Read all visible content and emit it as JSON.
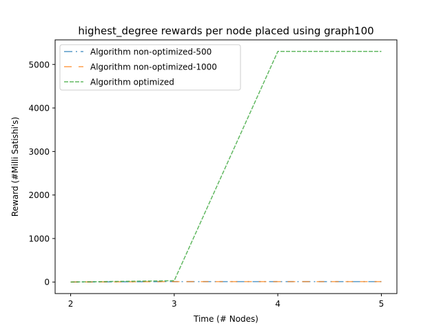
{
  "chart_data": {
    "type": "line",
    "title": "highest_degree rewards per node placed using graph100",
    "xlabel": "Time (# Nodes)",
    "ylabel": "Reward (#Milli Satishi's)",
    "x": [
      2,
      3,
      4,
      5
    ],
    "xlim": [
      1.85,
      5.15
    ],
    "ylim": [
      -265,
      5565
    ],
    "xticks": [
      2,
      3,
      4,
      5
    ],
    "yticks": [
      0,
      1000,
      2000,
      3000,
      4000,
      5000
    ],
    "grid": false,
    "legend_position": "top-left",
    "series": [
      {
        "name": "Algorithm non-optimized-500",
        "values": [
          0,
          10,
          10,
          10
        ],
        "color": "#1f77b4",
        "dash": "long-dash-dot"
      },
      {
        "name": "Algorithm non-optimized-1000",
        "values": [
          0,
          10,
          10,
          10
        ],
        "color": "#ff7f0e",
        "dash": "long-dash"
      },
      {
        "name": "Algorithm optimized",
        "values": [
          0,
          30,
          5300,
          5300
        ],
        "color": "#2ca02c",
        "dash": "dash"
      }
    ]
  }
}
